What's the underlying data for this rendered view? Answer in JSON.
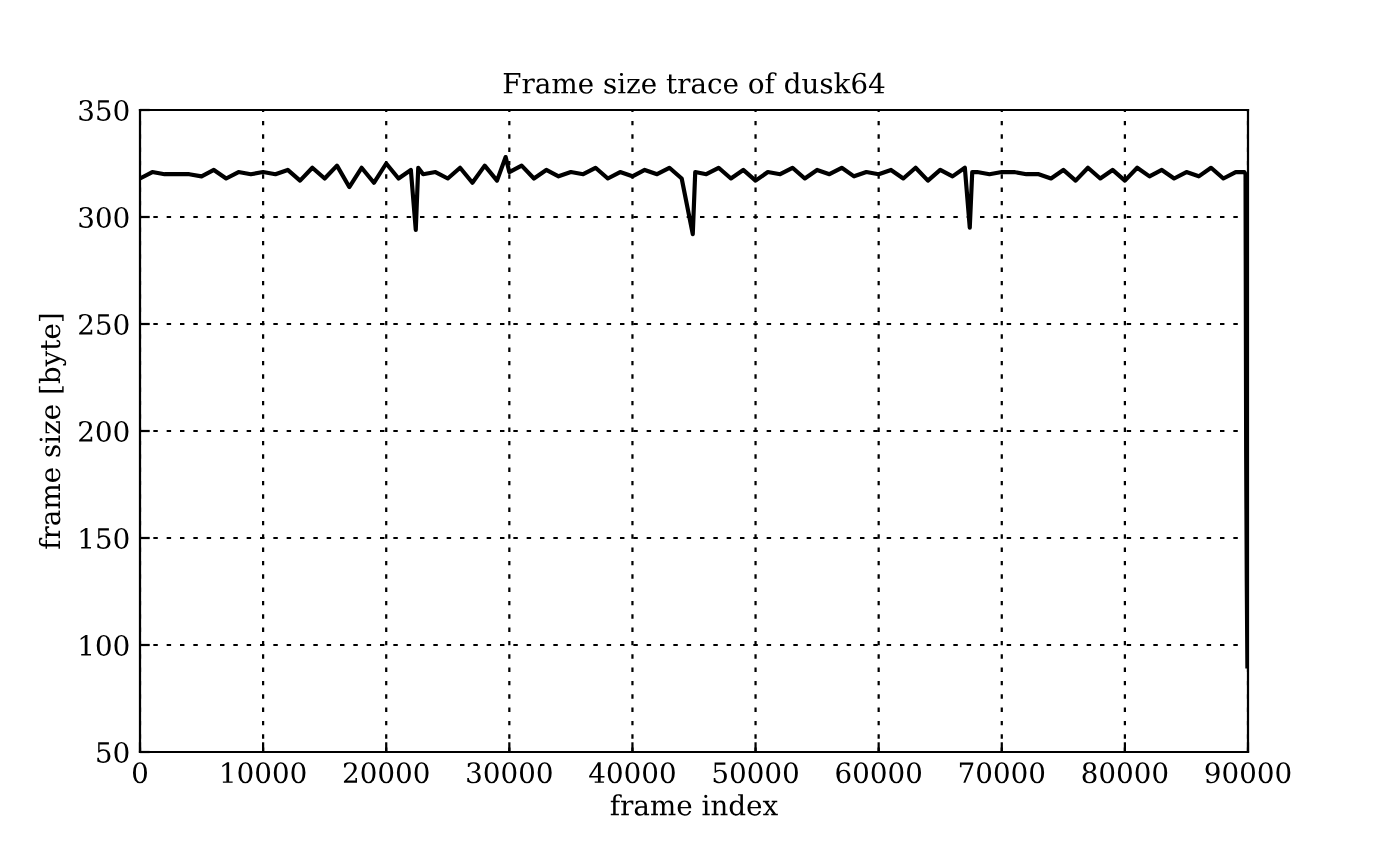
{
  "chart_data": {
    "type": "line",
    "title": "Frame size trace of dusk64",
    "xlabel": "frame index",
    "ylabel": "frame size [byte]",
    "xlim": [
      0,
      90000
    ],
    "ylim": [
      50,
      350
    ],
    "xticks": [
      0,
      10000,
      20000,
      30000,
      40000,
      50000,
      60000,
      70000,
      80000,
      90000
    ],
    "yticks": [
      50,
      100,
      150,
      200,
      250,
      300,
      350
    ],
    "grid": true,
    "legend": false,
    "marker": "none",
    "line_style": "solid",
    "series": [
      {
        "color": "#000000",
        "x": [
          0,
          1000,
          2000,
          3000,
          4000,
          5000,
          6000,
          7000,
          8000,
          9000,
          10000,
          11000,
          12000,
          13000,
          14000,
          15000,
          16000,
          17000,
          18000,
          19000,
          20000,
          21000,
          22000,
          22400,
          22600,
          23000,
          24000,
          25000,
          26000,
          27000,
          28000,
          29000,
          29700,
          30000,
          31000,
          32000,
          33000,
          34000,
          35000,
          36000,
          37000,
          38000,
          39000,
          40000,
          41000,
          42000,
          43000,
          44000,
          44900,
          45100,
          46000,
          47000,
          48000,
          49000,
          50000,
          51000,
          52000,
          53000,
          54000,
          55000,
          56000,
          57000,
          58000,
          59000,
          60000,
          61000,
          62000,
          63000,
          64000,
          65000,
          66000,
          67000,
          67400,
          67600,
          68000,
          69000,
          70000,
          71000,
          72000,
          73000,
          74000,
          75000,
          76000,
          77000,
          78000,
          79000,
          80000,
          81000,
          82000,
          83000,
          84000,
          85000,
          86000,
          87000,
          88000,
          89000,
          89700,
          89800,
          89850,
          89900,
          89950
        ],
        "values": [
          318,
          321,
          320,
          320,
          320,
          319,
          322,
          318,
          321,
          320,
          321,
          320,
          322,
          317,
          323,
          318,
          324,
          314,
          323,
          316,
          325,
          318,
          322,
          294,
          323,
          320,
          321,
          318,
          323,
          316,
          324,
          317,
          328,
          321,
          324,
          318,
          322,
          319,
          321,
          320,
          323,
          318,
          321,
          319,
          322,
          320,
          323,
          318,
          292,
          321,
          320,
          323,
          318,
          322,
          317,
          321,
          320,
          323,
          318,
          322,
          320,
          323,
          319,
          321,
          320,
          322,
          318,
          323,
          317,
          322,
          319,
          323,
          295,
          321,
          321,
          320,
          321,
          321,
          320,
          320,
          318,
          322,
          317,
          323,
          318,
          322,
          317,
          323,
          319,
          322,
          318,
          321,
          319,
          323,
          318,
          321,
          321,
          320,
          190,
          130,
          90
        ]
      }
    ]
  }
}
